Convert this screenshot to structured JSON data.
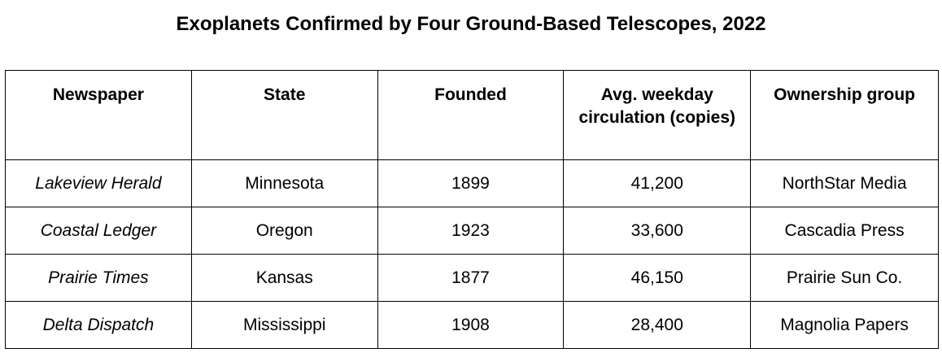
{
  "header": {
    "title": "Exoplanets Confirmed by Four Ground-Based Telescopes, 2022"
  },
  "table": {
    "columns": [
      "Newspaper",
      "State",
      "Founded",
      "Avg. weekday circulation (copies)",
      "Ownership group"
    ],
    "rows": [
      [
        "Lakeview Herald",
        "Minnesota",
        "1899",
        "41,200",
        "NorthStar Media"
      ],
      [
        "Coastal Ledger",
        "Oregon",
        "1923",
        "33,600",
        "Cascadia Press"
      ],
      [
        "Prairie Times",
        "Kansas",
        "1877",
        "46,150",
        "Prairie Sun Co."
      ],
      [
        "Delta Dispatch",
        "Mississippi",
        "1908",
        "28,400",
        "Magnolia Papers"
      ]
    ]
  }
}
